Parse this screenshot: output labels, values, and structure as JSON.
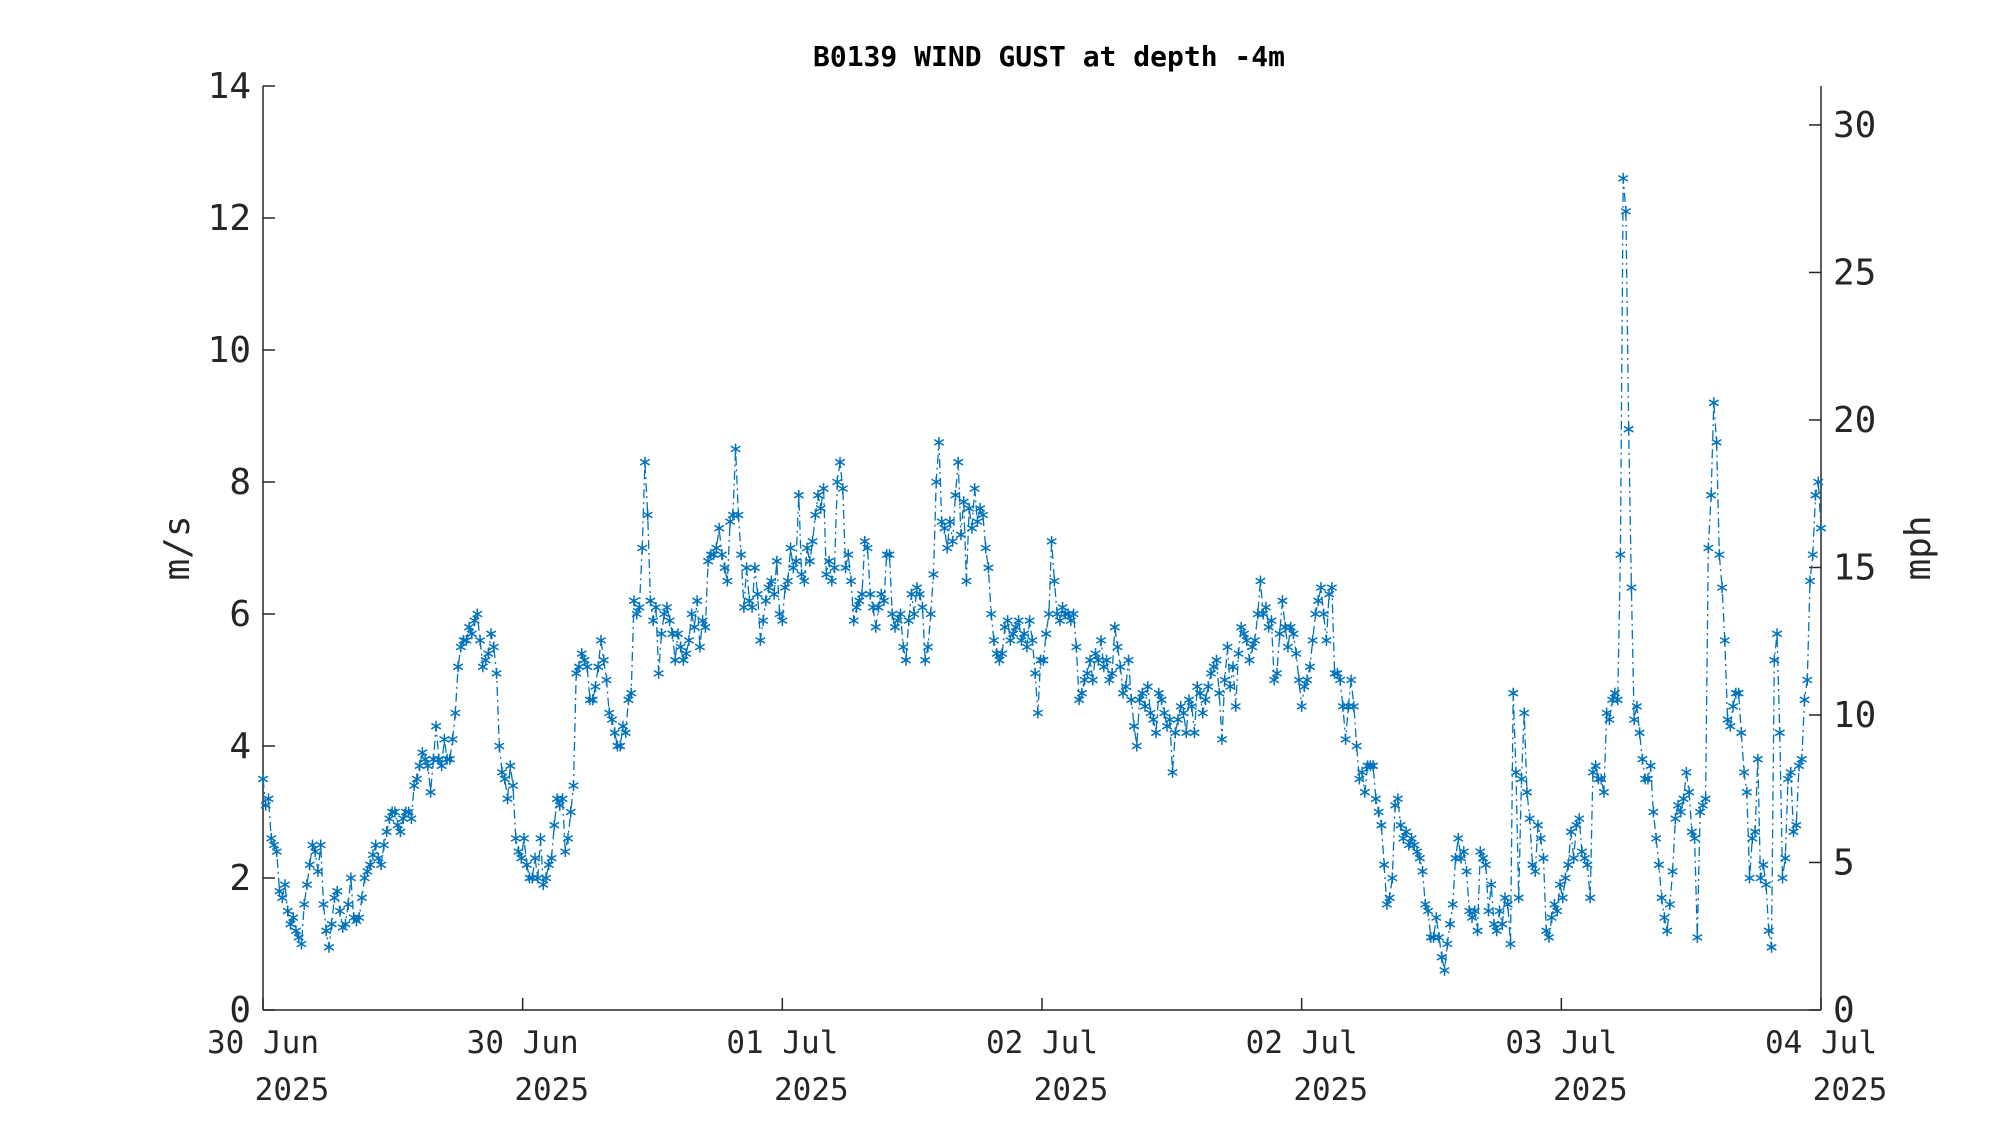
{
  "chart_data": {
    "type": "line",
    "title": "B0139 WIND GUST at depth -4m",
    "ylabel": "m/s",
    "ylabel_right": "mph",
    "ylim": [
      0,
      14
    ],
    "ylim_right": [
      0,
      31.32
    ],
    "yticks": [
      "0",
      "2",
      "4",
      "6",
      "8",
      "10",
      "12",
      "14"
    ],
    "yticks_right": [
      "0",
      "5",
      "10",
      "15",
      "20",
      "25",
      "30"
    ],
    "xlim_days": [
      0,
      4.5
    ],
    "xtick_labels": [
      {
        "day": "30 Jun",
        "year": "2025"
      },
      {
        "day": "30 Jun",
        "year": "2025"
      },
      {
        "day": "01 Jul",
        "year": "2025"
      },
      {
        "day": "02 Jul",
        "year": "2025"
      },
      {
        "day": "02 Jul",
        "year": "2025"
      },
      {
        "day": "03 Jul",
        "year": "2025"
      },
      {
        "day": "04 Jul",
        "year": "2025"
      }
    ],
    "grid": false,
    "marker": "*",
    "line_style": "dash-dot",
    "series": [
      {
        "color": "#0072BD",
        "values": [
          3.5,
          3.1,
          3.2,
          2.6,
          2.5,
          2.4,
          1.8,
          1.7,
          1.9,
          1.5,
          1.3,
          1.4,
          1.2,
          1.1,
          1.0,
          1.6,
          1.9,
          2.2,
          2.5,
          2.4,
          2.1,
          2.5,
          1.6,
          1.2,
          0.95,
          1.3,
          1.7,
          1.8,
          1.5,
          1.25,
          1.3,
          1.6,
          2.0,
          1.4,
          1.35,
          1.4,
          1.7,
          2.0,
          2.1,
          2.2,
          2.35,
          2.5,
          2.3,
          2.2,
          2.5,
          2.7,
          2.9,
          3.0,
          3.0,
          2.8,
          2.7,
          2.9,
          3.0,
          3.0,
          2.9,
          3.4,
          3.5,
          3.7,
          3.9,
          3.8,
          3.7,
          3.3,
          3.8,
          4.3,
          3.8,
          3.7,
          4.1,
          3.8,
          3.8,
          4.1,
          4.5,
          5.2,
          5.5,
          5.6,
          5.6,
          5.8,
          5.7,
          5.9,
          6.0,
          5.6,
          5.2,
          5.3,
          5.4,
          5.7,
          5.5,
          5.1,
          4.0,
          3.6,
          3.5,
          3.2,
          3.7,
          3.4,
          2.6,
          2.4,
          2.3,
          2.6,
          2.2,
          2.0,
          2.0,
          2.3,
          2.0,
          2.6,
          1.9,
          2.0,
          2.2,
          2.3,
          2.8,
          3.2,
          3.1,
          3.2,
          2.4,
          2.6,
          3.0,
          3.4,
          5.1,
          5.2,
          5.4,
          5.3,
          5.2,
          4.7,
          4.7,
          4.9,
          5.2,
          5.6,
          5.3,
          5.0,
          4.5,
          4.4,
          4.2,
          4.0,
          4.0,
          4.3,
          4.2,
          4.7,
          4.8,
          6.2,
          6.0,
          6.1,
          7.0,
          8.3,
          7.5,
          6.2,
          5.9,
          6.1,
          5.1,
          5.7,
          6.0,
          6.1,
          5.9,
          5.7,
          5.3,
          5.7,
          5.5,
          5.3,
          5.4,
          5.6,
          6.0,
          5.8,
          6.2,
          5.5,
          5.9,
          5.8,
          6.8,
          6.9,
          6.9,
          7.0,
          7.3,
          6.9,
          6.7,
          6.5,
          7.4,
          7.5,
          8.5,
          7.5,
          6.9,
          6.1,
          6.7,
          6.2,
          6.1,
          6.7,
          6.3,
          5.6,
          5.9,
          6.2,
          6.4,
          6.5,
          6.3,
          6.8,
          6.0,
          5.9,
          6.4,
          6.5,
          7.0,
          6.7,
          6.8,
          7.8,
          6.6,
          6.5,
          7.0,
          6.8,
          7.1,
          7.5,
          7.8,
          7.6,
          7.9,
          6.6,
          6.8,
          6.5,
          6.7,
          8.0,
          8.3,
          7.9,
          6.7,
          6.9,
          6.5,
          5.9,
          6.1,
          6.2,
          6.3,
          7.1,
          7.0,
          6.3,
          6.1,
          5.8,
          6.1,
          6.3,
          6.2,
          6.9,
          6.9,
          6.0,
          5.8,
          5.9,
          6.0,
          5.5,
          5.3,
          5.9,
          6.3,
          6.0,
          6.4,
          6.3,
          6.1,
          5.3,
          5.5,
          6.0,
          6.6,
          8.0,
          8.6,
          7.4,
          7.3,
          7.0,
          7.4,
          7.1,
          7.8,
          8.3,
          7.2,
          7.7,
          6.5,
          7.6,
          7.3,
          7.9,
          7.4,
          7.6,
          7.5,
          7.0,
          6.7,
          6.0,
          5.6,
          5.4,
          5.3,
          5.4,
          5.8,
          5.9,
          5.6,
          5.7,
          5.8,
          5.9,
          5.6,
          5.7,
          5.5,
          5.9,
          5.6,
          5.1,
          4.5,
          5.3,
          5.3,
          5.7,
          6.0,
          7.1,
          6.5,
          6.0,
          5.9,
          6.1,
          6.0,
          6.0,
          5.9,
          6.0,
          5.5,
          4.7,
          4.8,
          5.0,
          5.1,
          5.3,
          5.0,
          5.4,
          5.3,
          5.6,
          5.2,
          5.3,
          5.0,
          5.1,
          5.8,
          5.5,
          5.2,
          4.8,
          4.9,
          5.3,
          4.7,
          4.3,
          4.0,
          4.7,
          4.8,
          4.6,
          4.9,
          4.5,
          4.4,
          4.2,
          4.8,
          4.7,
          4.5,
          4.3,
          4.4,
          3.6,
          4.2,
          4.4,
          4.6,
          4.5,
          4.2,
          4.7,
          4.6,
          4.2,
          4.9,
          4.8,
          4.5,
          4.7,
          4.9,
          5.1,
          5.2,
          5.3,
          4.8,
          4.1,
          5.0,
          5.5,
          4.9,
          5.2,
          4.6,
          5.4,
          5.8,
          5.7,
          5.6,
          5.3,
          5.5,
          5.6,
          6.0,
          6.5,
          6.0,
          6.1,
          5.8,
          5.9,
          5.0,
          5.1,
          5.7,
          6.2,
          5.8,
          5.5,
          5.8,
          5.7,
          5.4,
          5.0,
          4.6,
          4.9,
          5.0,
          5.2,
          5.6,
          6.0,
          6.2,
          6.4,
          6.0,
          5.6,
          6.3,
          6.4,
          5.1,
          5.1,
          5.0,
          4.6,
          4.1,
          4.6,
          5.0,
          4.6,
          4.0,
          3.5,
          3.6,
          3.3,
          3.7,
          3.7,
          3.7,
          3.2,
          3.0,
          2.8,
          2.2,
          1.6,
          1.7,
          2.0,
          3.1,
          3.2,
          2.8,
          2.6,
          2.7,
          2.5,
          2.6,
          2.5,
          2.4,
          2.3,
          2.1,
          1.6,
          1.5,
          1.1,
          1.1,
          1.4,
          1.1,
          0.8,
          0.6,
          1.0,
          1.3,
          1.6,
          2.3,
          2.6,
          2.3,
          2.4,
          2.1,
          1.5,
          1.4,
          1.5,
          1.2,
          2.4,
          2.3,
          2.2,
          1.5,
          1.9,
          1.3,
          1.2,
          1.5,
          1.3,
          1.7,
          1.6,
          1.0,
          4.8,
          3.6,
          1.7,
          3.5,
          4.5,
          3.3,
          2.9,
          2.2,
          2.1,
          2.8,
          2.6,
          2.3,
          1.2,
          1.1,
          1.4,
          1.6,
          1.5,
          1.9,
          1.7,
          2.0,
          2.2,
          2.7,
          2.3,
          2.8,
          2.9,
          2.4,
          2.3,
          2.2,
          1.7,
          3.6,
          3.7,
          3.5,
          3.5,
          3.3,
          4.5,
          4.4,
          4.7,
          4.8,
          4.7,
          6.9,
          12.6,
          12.1,
          8.8,
          6.4,
          4.4,
          4.6,
          4.2,
          3.8,
          3.5,
          3.5,
          3.7,
          3.0,
          2.6,
          2.2,
          1.7,
          1.4,
          1.2,
          1.6,
          2.1,
          2.9,
          3.1,
          3.0,
          3.2,
          3.6,
          3.3,
          2.7,
          2.6,
          1.1,
          3.0,
          3.1,
          3.2,
          7.0,
          7.8,
          9.2,
          8.6,
          6.9,
          6.4,
          5.6,
          4.4,
          4.3,
          4.6,
          4.8,
          4.8,
          4.2,
          3.6,
          3.3,
          2.0,
          2.6,
          2.7,
          3.8,
          2.0,
          2.2,
          1.9,
          1.2,
          0.95,
          5.3,
          5.7,
          4.2,
          2.0,
          2.3,
          3.5,
          3.6,
          2.7,
          2.8,
          3.7,
          3.8,
          4.7,
          5.0,
          6.5,
          6.9,
          7.8,
          8.0,
          7.3
        ]
      }
    ]
  }
}
